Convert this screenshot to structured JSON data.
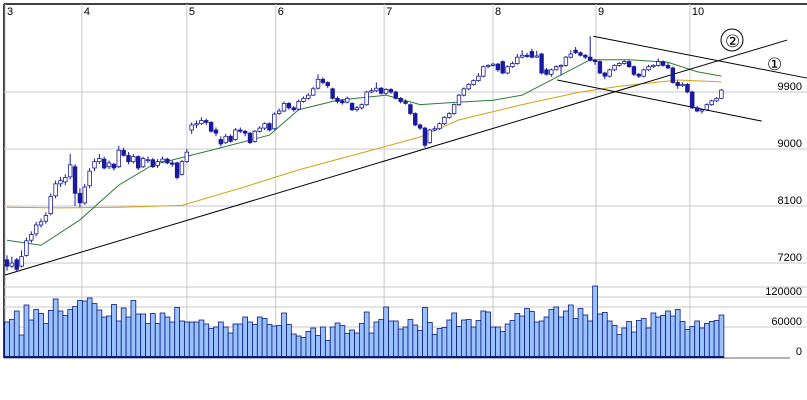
{
  "chart_data": {
    "type": "candlestick",
    "colors": {
      "up_fill": "#ffffff",
      "up_stroke": "#1a1a9a",
      "down_fill": "#1a1aa0",
      "ma_short": "#2e7d32",
      "ma_long": "#d4a017",
      "trendline": "#000000",
      "volume_fill": "#99c2ff",
      "volume_stroke": "#0a1a7a",
      "grid": "#c8c8c8"
    },
    "price_axis": {
      "ticks": [
        9900,
        9000,
        8100,
        7200
      ],
      "labels": [
        "9900",
        "9000",
        "8100",
        "7200"
      ],
      "position": "right"
    },
    "volume_axis": {
      "ticks": [
        120000,
        60000,
        0
      ],
      "labels": [
        "120000",
        "60000",
        "0"
      ],
      "position": "right"
    },
    "month_ticks": [
      {
        "label": "3",
        "index": -0.4
      },
      {
        "label": "4",
        "index": 15.4
      },
      {
        "label": "5",
        "index": 37
      },
      {
        "label": "6",
        "index": 55.3
      },
      {
        "label": "7",
        "index": 77.6
      },
      {
        "label": "8",
        "index": 100
      },
      {
        "label": "9",
        "index": 121.2
      },
      {
        "label": "10",
        "index": 140.5
      }
    ],
    "grid": true,
    "candles_ohlc": [
      [
        7250,
        7320,
        7080,
        7150
      ],
      [
        7150,
        7300,
        7120,
        7200
      ],
      [
        7250,
        7280,
        7060,
        7100
      ],
      [
        7150,
        7400,
        7130,
        7300
      ],
      [
        7320,
        7600,
        7300,
        7550
      ],
      [
        7560,
        7700,
        7520,
        7650
      ],
      [
        7660,
        7850,
        7620,
        7800
      ],
      [
        7800,
        7900,
        7760,
        7850
      ],
      [
        7860,
        8000,
        7820,
        7950
      ],
      [
        7980,
        8300,
        7950,
        8250
      ],
      [
        8260,
        8500,
        8220,
        8450
      ],
      [
        8450,
        8560,
        8400,
        8500
      ],
      [
        8480,
        8600,
        8430,
        8550
      ],
      [
        8560,
        8920,
        8520,
        8750
      ],
      [
        8720,
        8760,
        8100,
        8300
      ],
      [
        8300,
        8380,
        8080,
        8150
      ],
      [
        8150,
        8450,
        8120,
        8400
      ],
      [
        8420,
        8700,
        8380,
        8650
      ],
      [
        8700,
        8850,
        8650,
        8800
      ],
      [
        8800,
        8920,
        8760,
        8850
      ],
      [
        8840,
        8880,
        8680,
        8700
      ],
      [
        8720,
        8820,
        8680,
        8780
      ],
      [
        8760,
        8780,
        8660,
        8700
      ],
      [
        8720,
        9050,
        8700,
        8980
      ],
      [
        8980,
        9020,
        8880,
        8900
      ],
      [
        8900,
        8950,
        8760,
        8800
      ],
      [
        8800,
        8920,
        8770,
        8880
      ],
      [
        8880,
        8900,
        8670,
        8700
      ],
      [
        8720,
        8880,
        8700,
        8850
      ],
      [
        8830,
        8880,
        8780,
        8830
      ],
      [
        8830,
        8860,
        8700,
        8720
      ],
      [
        8740,
        8840,
        8700,
        8800
      ],
      [
        8800,
        8880,
        8780,
        8840
      ],
      [
        8840,
        8860,
        8760,
        8780
      ],
      [
        8780,
        8820,
        8720,
        8760
      ],
      [
        8780,
        8800,
        8520,
        8550
      ],
      [
        8600,
        8830,
        8580,
        8800
      ],
      [
        8800,
        9000,
        8780,
        8950
      ],
      [
        9300,
        9420,
        9240,
        9380
      ],
      [
        9380,
        9450,
        9330,
        9400
      ],
      [
        9400,
        9500,
        9380,
        9450
      ],
      [
        9450,
        9480,
        9380,
        9420
      ],
      [
        9420,
        9440,
        9260,
        9280
      ],
      [
        9300,
        9340,
        9200,
        9250
      ],
      [
        9150,
        9200,
        9040,
        9080
      ],
      [
        9100,
        9240,
        9080,
        9200
      ],
      [
        9200,
        9230,
        9100,
        9120
      ],
      [
        9150,
        9330,
        9130,
        9300
      ],
      [
        9300,
        9340,
        9250,
        9280
      ],
      [
        9280,
        9300,
        9200,
        9250
      ],
      [
        9250,
        9270,
        9080,
        9100
      ],
      [
        9120,
        9300,
        9100,
        9280
      ],
      [
        9280,
        9360,
        9260,
        9330
      ],
      [
        9330,
        9420,
        9300,
        9400
      ],
      [
        9400,
        9420,
        9280,
        9300
      ],
      [
        9320,
        9580,
        9300,
        9550
      ],
      [
        9560,
        9640,
        9540,
        9600
      ],
      [
        9600,
        9750,
        9580,
        9720
      ],
      [
        9720,
        9740,
        9620,
        9650
      ],
      [
        9650,
        9680,
        9590,
        9620
      ],
      [
        9630,
        9780,
        9610,
        9750
      ],
      [
        9750,
        9830,
        9730,
        9800
      ],
      [
        9800,
        9880,
        9780,
        9850
      ],
      [
        9850,
        9980,
        9840,
        9950
      ],
      [
        9960,
        10180,
        9940,
        10100
      ],
      [
        10100,
        10130,
        10020,
        10050
      ],
      [
        10050,
        10070,
        9960,
        10000
      ],
      [
        9950,
        9970,
        9780,
        9800
      ],
      [
        9800,
        9830,
        9720,
        9750
      ],
      [
        9760,
        9790,
        9700,
        9730
      ],
      [
        9740,
        9830,
        9720,
        9800
      ],
      [
        9720,
        9740,
        9600,
        9620
      ],
      [
        9620,
        9680,
        9590,
        9650
      ],
      [
        9650,
        9720,
        9620,
        9700
      ],
      [
        9700,
        9920,
        9680,
        9900
      ],
      [
        9900,
        9960,
        9880,
        9920
      ],
      [
        9920,
        10050,
        9900,
        9960
      ],
      [
        9960,
        9980,
        9860,
        9880
      ],
      [
        9880,
        9960,
        9860,
        9940
      ],
      [
        9940,
        9960,
        9870,
        9900
      ],
      [
        9900,
        9920,
        9780,
        9800
      ],
      [
        9800,
        9820,
        9720,
        9750
      ],
      [
        9750,
        9780,
        9700,
        9720
      ],
      [
        9700,
        9720,
        9540,
        9560
      ],
      [
        9560,
        9580,
        9360,
        9380
      ],
      [
        9380,
        9400,
        9300,
        9330
      ],
      [
        9330,
        9350,
        9020,
        9060
      ],
      [
        9100,
        9320,
        9080,
        9300
      ],
      [
        9300,
        9360,
        9280,
        9320
      ],
      [
        9320,
        9420,
        9300,
        9400
      ],
      [
        9400,
        9520,
        9380,
        9500
      ],
      [
        9500,
        9580,
        9480,
        9560
      ],
      [
        9560,
        9720,
        9540,
        9700
      ],
      [
        9700,
        9870,
        9680,
        9850
      ],
      [
        9850,
        9970,
        9830,
        9950
      ],
      [
        9950,
        10040,
        9930,
        10020
      ],
      [
        10020,
        10100,
        10000,
        10080
      ],
      [
        10080,
        10200,
        10060,
        10150
      ],
      [
        10150,
        10320,
        10130,
        10300
      ],
      [
        10300,
        10340,
        10280,
        10320
      ],
      [
        10320,
        10360,
        10300,
        10340
      ],
      [
        10340,
        10360,
        10220,
        10250
      ],
      [
        10380,
        10400,
        10180,
        10200
      ],
      [
        10200,
        10320,
        10180,
        10300
      ],
      [
        10300,
        10380,
        10280,
        10350
      ],
      [
        10350,
        10500,
        10330,
        10450
      ],
      [
        10450,
        10560,
        10430,
        10480
      ],
      [
        10480,
        10520,
        10440,
        10460
      ],
      [
        10540,
        10580,
        10430,
        10450
      ],
      [
        10450,
        10550,
        10440,
        10470
      ],
      [
        10500,
        10520,
        10180,
        10200
      ],
      [
        10250,
        10280,
        10160,
        10180
      ],
      [
        10180,
        10270,
        10140,
        10250
      ],
      [
        10250,
        10320,
        10240,
        10300
      ],
      [
        10300,
        10340,
        10160,
        10320
      ],
      [
        10320,
        10470,
        10300,
        10450
      ],
      [
        10450,
        10560,
        10430,
        10500
      ],
      [
        10560,
        10610,
        10500,
        10520
      ],
      [
        10520,
        10540,
        10460,
        10480
      ],
      [
        10480,
        10500,
        10420,
        10450
      ],
      [
        10450,
        10780,
        10380,
        10400
      ],
      [
        10400,
        10420,
        10330,
        10380
      ],
      [
        10380,
        10400,
        10180,
        10200
      ],
      [
        10200,
        10220,
        10100,
        10150
      ],
      [
        10150,
        10270,
        10130,
        10250
      ],
      [
        10250,
        10340,
        10230,
        10320
      ],
      [
        10320,
        10370,
        10300,
        10350
      ],
      [
        10350,
        10400,
        10330,
        10380
      ],
      [
        10380,
        10400,
        10280,
        10300
      ],
      [
        10300,
        10320,
        10150,
        10180
      ],
      [
        10180,
        10200,
        10120,
        10150
      ],
      [
        10150,
        10270,
        10130,
        10250
      ],
      [
        10250,
        10330,
        10230,
        10300
      ],
      [
        10300,
        10340,
        10280,
        10320
      ],
      [
        10320,
        10430,
        10300,
        10380
      ],
      [
        10380,
        10400,
        10300,
        10320
      ],
      [
        10320,
        10360,
        10260,
        10280
      ],
      [
        10280,
        10300,
        10030,
        10050
      ],
      [
        10050,
        10080,
        9950,
        10000
      ],
      [
        10000,
        10050,
        9980,
        10020
      ],
      [
        10020,
        10040,
        9880,
        9900
      ],
      [
        9900,
        9920,
        9630,
        9650
      ],
      [
        9650,
        9680,
        9580,
        9600
      ],
      [
        9600,
        9640,
        9560,
        9620
      ],
      [
        9620,
        9720,
        9600,
        9700
      ],
      [
        9700,
        9780,
        9680,
        9760
      ],
      [
        9760,
        9820,
        9740,
        9800
      ],
      [
        9800,
        9950,
        9790,
        9930
      ]
    ],
    "volume": [
      70000,
      75000,
      92000,
      44000,
      104000,
      74000,
      95000,
      87000,
      67000,
      93000,
      116000,
      92000,
      83000,
      95000,
      101000,
      113000,
      112000,
      118000,
      107000,
      94000,
      80000,
      82000,
      105000,
      72000,
      98000,
      80000,
      113000,
      86000,
      86000,
      67000,
      87000,
      67000,
      88000,
      80000,
      70000,
      99000,
      72000,
      70000,
      70000,
      70000,
      74000,
      66000,
      57000,
      60000,
      70000,
      60000,
      48000,
      66000,
      66000,
      80000,
      70000,
      65000,
      80000,
      77000,
      65000,
      62000,
      63000,
      88000,
      65000,
      46000,
      42000,
      39000,
      51000,
      58000,
      43000,
      60000,
      33000,
      60000,
      68000,
      63000,
      47000,
      54000,
      48000,
      67000,
      90000,
      48000,
      70000,
      75000,
      100000,
      72000,
      72000,
      56000,
      60000,
      75000,
      64000,
      53000,
      99000,
      69000,
      45000,
      57000,
      59000,
      74000,
      88000,
      61000,
      74000,
      75000,
      60000,
      73000,
      92000,
      90000,
      60000,
      60000,
      51000,
      66000,
      73000,
      87000,
      82000,
      97000,
      91000,
      70000,
      72000,
      80000,
      95000,
      100000,
      80000,
      92000,
      104000,
      77000,
      97000,
      84000,
      72000,
      142000,
      86000,
      89000,
      72000,
      63000,
      45000,
      58000,
      71000,
      50000,
      73000,
      77000,
      58000,
      88000,
      80000,
      83000,
      92000,
      82000,
      95000,
      71000,
      55000,
      61000,
      72000,
      58000,
      67000,
      71000,
      73000,
      84000
    ],
    "ma_short": [
      [
        0,
        7560
      ],
      [
        7,
        7480
      ],
      [
        15,
        7880
      ],
      [
        23,
        8430
      ],
      [
        30,
        8750
      ],
      [
        42,
        8980
      ],
      [
        54,
        9220
      ],
      [
        60,
        9620
      ],
      [
        68,
        9770
      ],
      [
        78,
        9850
      ],
      [
        85,
        9700
      ],
      [
        93,
        9740
      ],
      [
        100,
        9770
      ],
      [
        106,
        9850
      ],
      [
        114,
        10170
      ],
      [
        120,
        10410
      ],
      [
        128,
        10410
      ],
      [
        136,
        10370
      ],
      [
        142,
        10220
      ],
      [
        147,
        10150
      ]
    ],
    "ma_long": [
      [
        0,
        8080
      ],
      [
        11,
        8070
      ],
      [
        23,
        8080
      ],
      [
        36,
        8110
      ],
      [
        48,
        8380
      ],
      [
        60,
        8670
      ],
      [
        75,
        8980
      ],
      [
        85,
        9190
      ],
      [
        93,
        9460
      ],
      [
        106,
        9700
      ],
      [
        118,
        9900
      ],
      [
        126,
        9990
      ],
      [
        138,
        10090
      ],
      [
        147,
        10060
      ]
    ],
    "trendlines": [
      {
        "from": [
          -0.4,
          7010
        ],
        "to": [
          160.5,
          10720
        ]
      },
      {
        "from": [
          120.6,
          10780
        ],
        "to": [
          164.6,
          10120
        ]
      },
      {
        "from": [
          113.2,
          10090
        ],
        "to": [
          155.3,
          9440
        ]
      }
    ],
    "annotations": [
      "②",
      "①"
    ]
  }
}
